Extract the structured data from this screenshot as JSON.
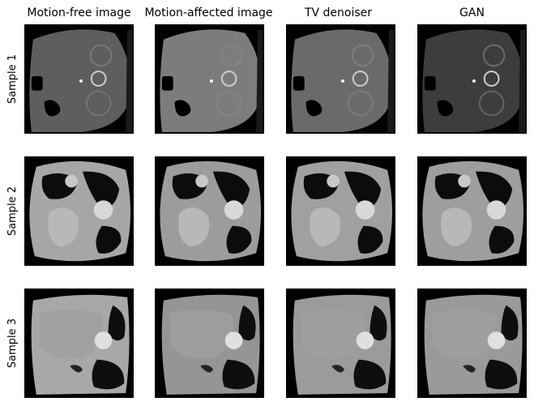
{
  "columns": [
    {
      "title": "Motion-free image"
    },
    {
      "title": "Motion-affected image"
    },
    {
      "title": "TV denoiser"
    },
    {
      "title": "GAN"
    }
  ],
  "rows": [
    {
      "label": "Sample 1",
      "kind": "abdomen"
    },
    {
      "label": "Sample 2",
      "kind": "lung"
    },
    {
      "label": "Sample 3",
      "kind": "liver"
    }
  ],
  "tones": {
    "abdomen": [
      "#5e5e5e",
      "#7c7c7c",
      "#6a6a6a",
      "#3d3d3d"
    ],
    "lung": [
      "#a6a6a6",
      "#9c9c9c",
      "#a0a0a0",
      "#9e9e9e"
    ],
    "liver": [
      "#a8a8a8",
      "#959595",
      "#9b9b9b",
      "#9a9a9a"
    ]
  }
}
